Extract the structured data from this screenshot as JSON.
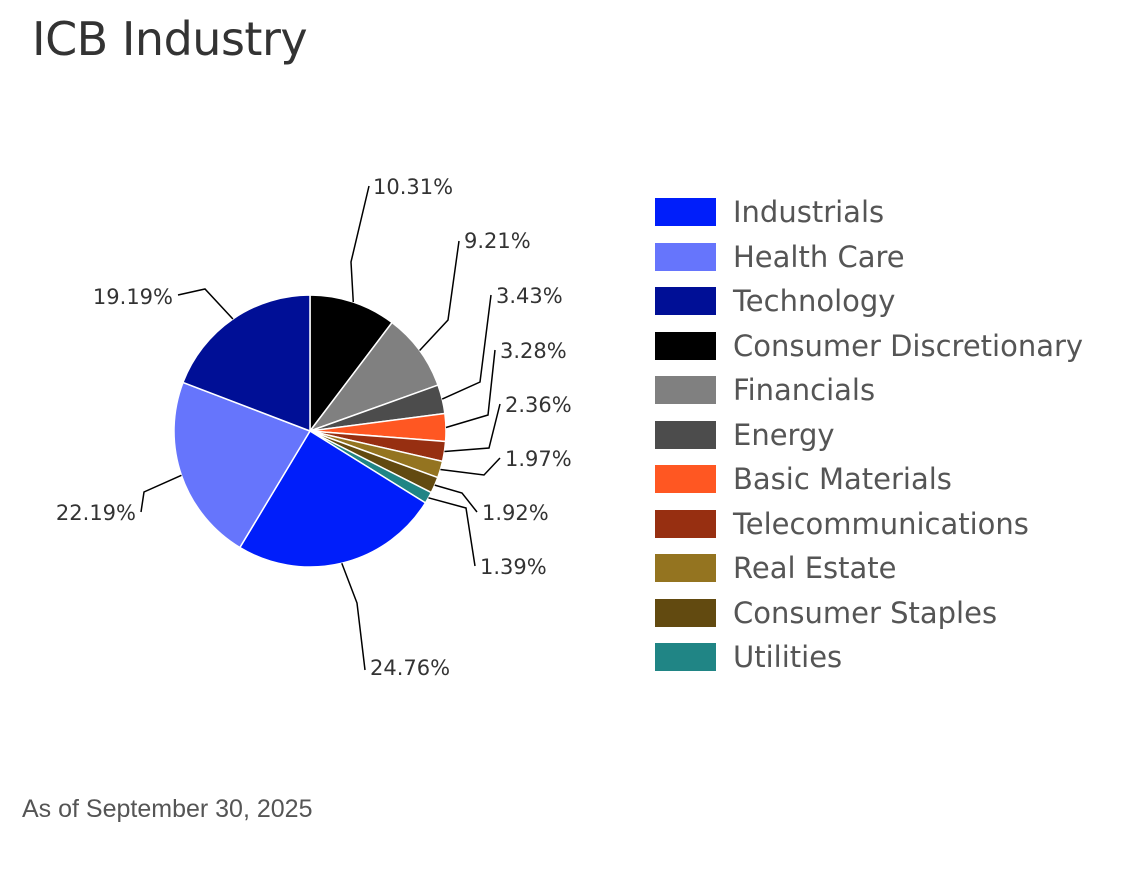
{
  "title": "ICB Industry",
  "footnote": "As of September 30, 2025",
  "chart_data": {
    "type": "pie",
    "title": "ICB Industry",
    "label_format": "percent with two decimals",
    "legend_position": "right",
    "slices": [
      {
        "label": "Industrials",
        "value": 24.76,
        "display": "24.76%",
        "color": "#001EFA"
      },
      {
        "label": "Health Care",
        "value": 22.19,
        "display": "22.19%",
        "color": "#6675FC"
      },
      {
        "label": "Technology",
        "value": 19.19,
        "display": "19.19%",
        "color": "#000F96"
      },
      {
        "label": "Consumer Discretionary",
        "value": 10.31,
        "display": "10.31%",
        "color": "#000000"
      },
      {
        "label": "Financials",
        "value": 9.21,
        "display": "9.21%",
        "color": "#808080"
      },
      {
        "label": "Energy",
        "value": 3.43,
        "display": "3.43%",
        "color": "#4C4C4C"
      },
      {
        "label": "Basic Materials",
        "value": 3.28,
        "display": "3.28%",
        "color": "#FF5722"
      },
      {
        "label": "Telecommunications",
        "value": 2.36,
        "display": "2.36%",
        "color": "#972F11"
      },
      {
        "label": "Real Estate",
        "value": 1.97,
        "display": "1.97%",
        "color": "#947420"
      },
      {
        "label": "Consumer Staples",
        "value": 1.92,
        "display": "1.92%",
        "color": "#624A10"
      },
      {
        "label": "Utilities",
        "value": 1.39,
        "display": "1.39%",
        "color": "#208585"
      }
    ]
  }
}
